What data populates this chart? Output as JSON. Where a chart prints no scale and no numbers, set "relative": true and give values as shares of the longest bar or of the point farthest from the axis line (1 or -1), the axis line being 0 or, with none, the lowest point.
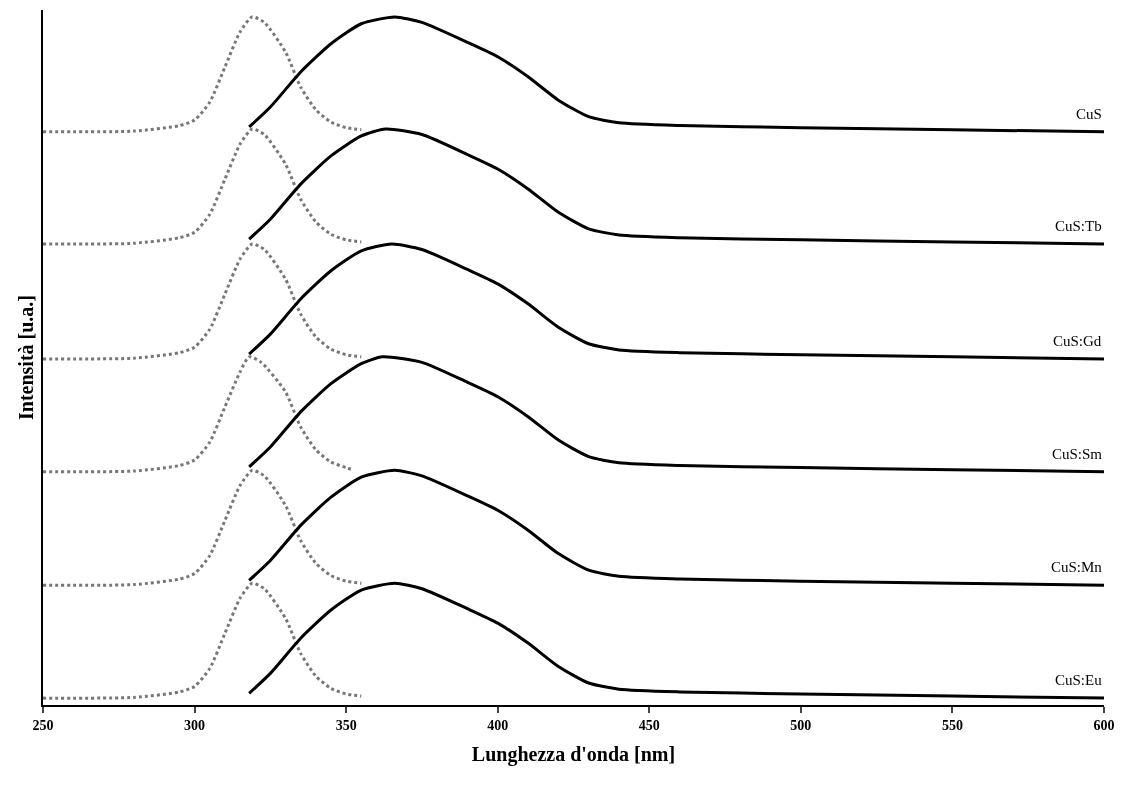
{
  "chart_data": {
    "type": "line",
    "relative": true,
    "xlabel": "Lunghezza d'onda [nm]",
    "ylabel": "Intensità [u.a.]",
    "xlim": [
      250,
      600
    ],
    "xticks": [
      250,
      300,
      350,
      400,
      450,
      500,
      550,
      600
    ],
    "legend": false,
    "series": [
      {
        "color": "#777777",
        "line_style": "dotted",
        "x": [
          250,
          280,
          295,
          300,
          305,
          310,
          315,
          319,
          323,
          330,
          335,
          340,
          345,
          350,
          355
        ],
        "values": [
          0.833,
          0.834,
          0.842,
          0.85,
          0.876,
          0.927,
          0.978,
          1.0,
          0.992,
          0.949,
          0.898,
          0.865,
          0.847,
          0.839,
          0.836
        ]
      },
      {
        "name": "CuS",
        "color": "#000000",
        "line_style": "solid",
        "x": [
          318,
          325,
          335,
          345,
          355,
          366,
          375,
          390,
          400,
          410,
          420,
          430,
          440,
          460,
          500,
          550,
          600
        ],
        "values": [
          0.84,
          0.869,
          0.92,
          0.961,
          0.99,
          1.0,
          0.992,
          0.963,
          0.942,
          0.913,
          0.879,
          0.855,
          0.846,
          0.842,
          0.839,
          0.836,
          0.833
        ]
      },
      {
        "color": "#777777",
        "line_style": "dotted",
        "x": [
          250,
          280,
          295,
          300,
          305,
          310,
          315,
          319,
          323,
          330,
          335,
          340,
          345,
          350,
          355
        ],
        "values": [
          0.67,
          0.671,
          0.679,
          0.687,
          0.713,
          0.764,
          0.815,
          0.837,
          0.829,
          0.786,
          0.735,
          0.702,
          0.684,
          0.676,
          0.673
        ]
      },
      {
        "name": "CuS:Tb",
        "color": "#000000",
        "line_style": "solid",
        "x": [
          318,
          325,
          335,
          345,
          355,
          363,
          375,
          390,
          400,
          410,
          420,
          430,
          440,
          460,
          500,
          550,
          600
        ],
        "values": [
          0.677,
          0.706,
          0.757,
          0.798,
          0.827,
          0.837,
          0.829,
          0.8,
          0.779,
          0.75,
          0.716,
          0.692,
          0.683,
          0.679,
          0.676,
          0.673,
          0.67
        ]
      },
      {
        "color": "#777777",
        "line_style": "dotted",
        "x": [
          250,
          280,
          295,
          300,
          305,
          310,
          315,
          319,
          323,
          330,
          335,
          340,
          345,
          350,
          355
        ],
        "values": [
          0.503,
          0.504,
          0.512,
          0.52,
          0.546,
          0.597,
          0.648,
          0.67,
          0.662,
          0.619,
          0.568,
          0.535,
          0.517,
          0.509,
          0.506
        ]
      },
      {
        "name": "CuS:Gd",
        "color": "#000000",
        "line_style": "solid",
        "x": [
          318,
          325,
          335,
          345,
          355,
          365,
          375,
          390,
          400,
          410,
          420,
          430,
          440,
          460,
          500,
          550,
          600
        ],
        "values": [
          0.51,
          0.539,
          0.59,
          0.631,
          0.66,
          0.67,
          0.662,
          0.633,
          0.612,
          0.583,
          0.549,
          0.525,
          0.516,
          0.512,
          0.509,
          0.506,
          0.503
        ]
      },
      {
        "color": "#777777",
        "line_style": "dotted",
        "x": [
          250,
          280,
          295,
          300,
          305,
          310,
          315,
          318,
          322,
          330,
          335,
          340,
          345,
          350,
          352
        ],
        "values": [
          0.339,
          0.34,
          0.348,
          0.356,
          0.382,
          0.433,
          0.484,
          0.506,
          0.498,
          0.455,
          0.404,
          0.371,
          0.353,
          0.345,
          0.342
        ]
      },
      {
        "name": "CuS:Sm",
        "color": "#000000",
        "line_style": "solid",
        "x": [
          318,
          325,
          335,
          345,
          355,
          362,
          375,
          390,
          400,
          410,
          420,
          430,
          440,
          460,
          500,
          550,
          600
        ],
        "values": [
          0.346,
          0.375,
          0.426,
          0.467,
          0.496,
          0.506,
          0.498,
          0.469,
          0.448,
          0.419,
          0.385,
          0.361,
          0.352,
          0.348,
          0.345,
          0.342,
          0.339
        ]
      },
      {
        "color": "#777777",
        "line_style": "dotted",
        "x": [
          250,
          280,
          295,
          300,
          305,
          310,
          315,
          319,
          323,
          330,
          335,
          340,
          345,
          350,
          355
        ],
        "values": [
          0.174,
          0.175,
          0.183,
          0.191,
          0.217,
          0.268,
          0.319,
          0.341,
          0.333,
          0.29,
          0.239,
          0.206,
          0.188,
          0.18,
          0.177
        ]
      },
      {
        "name": "CuS:Mn",
        "color": "#000000",
        "line_style": "solid",
        "x": [
          318,
          325,
          335,
          345,
          355,
          366,
          375,
          390,
          400,
          410,
          420,
          430,
          440,
          460,
          500,
          550,
          600
        ],
        "values": [
          0.181,
          0.21,
          0.261,
          0.302,
          0.331,
          0.341,
          0.333,
          0.304,
          0.283,
          0.254,
          0.22,
          0.196,
          0.187,
          0.183,
          0.18,
          0.177,
          0.174
        ]
      },
      {
        "color": "#777777",
        "line_style": "dotted",
        "x": [
          250,
          280,
          295,
          300,
          305,
          310,
          315,
          319,
          323,
          330,
          335,
          340,
          345,
          350,
          355
        ],
        "values": [
          0.01,
          0.011,
          0.019,
          0.027,
          0.053,
          0.104,
          0.155,
          0.177,
          0.169,
          0.126,
          0.075,
          0.042,
          0.024,
          0.016,
          0.013
        ]
      },
      {
        "name": "CuS:Eu",
        "color": "#000000",
        "line_style": "solid",
        "x": [
          318,
          325,
          335,
          345,
          355,
          366,
          375,
          390,
          400,
          410,
          420,
          430,
          440,
          460,
          500,
          550,
          600
        ],
        "values": [
          0.017,
          0.046,
          0.097,
          0.138,
          0.167,
          0.177,
          0.169,
          0.14,
          0.119,
          0.09,
          0.056,
          0.032,
          0.023,
          0.019,
          0.016,
          0.013,
          0.01
        ]
      }
    ]
  }
}
